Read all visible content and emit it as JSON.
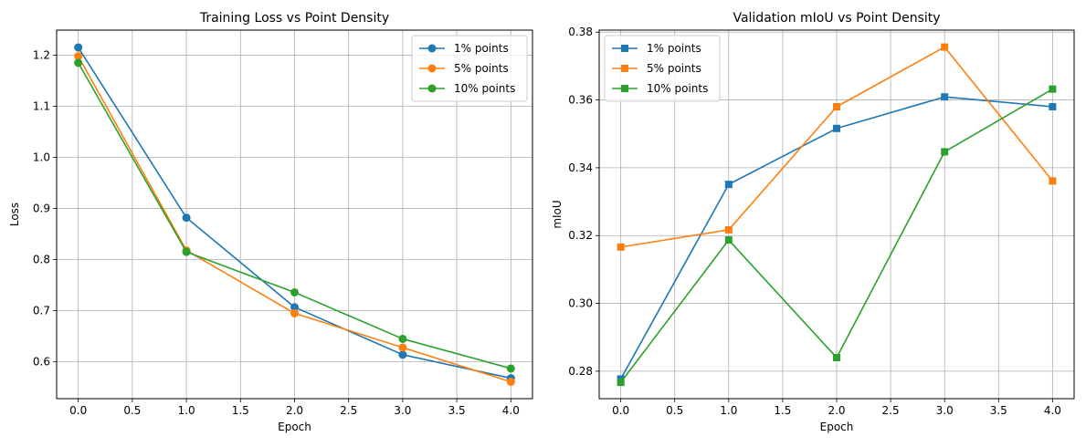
{
  "chart_data": [
    {
      "type": "line",
      "title": "Training Loss vs Point Density",
      "xlabel": "Epoch",
      "ylabel": "Loss",
      "xlim": [
        -0.2,
        4.2
      ],
      "ylim": [
        0.528,
        1.249
      ],
      "xticks": [
        0.0,
        0.5,
        1.0,
        1.5,
        2.0,
        2.5,
        3.0,
        3.5,
        4.0
      ],
      "xtick_labels": [
        "0.0",
        "0.5",
        "1.0",
        "1.5",
        "2.0",
        "2.5",
        "3.0",
        "3.5",
        "4.0"
      ],
      "yticks": [
        0.6,
        0.7,
        0.8,
        0.9,
        1.0,
        1.1,
        1.2
      ],
      "ytick_labels": [
        "0.6",
        "0.7",
        "0.8",
        "0.9",
        "1.0",
        "1.1",
        "1.2"
      ],
      "grid": true,
      "legend_position": "top-right",
      "marker": "circle",
      "x": [
        0,
        1,
        2,
        3,
        4
      ],
      "series": [
        {
          "name": "1% points",
          "color": "#1f77b4",
          "values": [
            1.215,
            0.882,
            0.707,
            0.614,
            0.568
          ]
        },
        {
          "name": "5% points",
          "color": "#ff7f0e",
          "values": [
            1.198,
            0.818,
            0.695,
            0.628,
            0.561
          ]
        },
        {
          "name": "10% points",
          "color": "#2ca02c",
          "values": [
            1.185,
            0.815,
            0.736,
            0.645,
            0.587
          ]
        }
      ]
    },
    {
      "type": "line",
      "title": "Validation mIoU vs Point Density",
      "xlabel": "Epoch",
      "ylabel": "mIoU",
      "xlim": [
        -0.2,
        4.2
      ],
      "ylim": [
        0.2719,
        0.3806
      ],
      "xticks": [
        0.0,
        0.5,
        1.0,
        1.5,
        2.0,
        2.5,
        3.0,
        3.5,
        4.0
      ],
      "xtick_labels": [
        "0.0",
        "0.5",
        "1.0",
        "1.5",
        "2.0",
        "2.5",
        "3.0",
        "3.5",
        "4.0"
      ],
      "yticks": [
        0.28,
        0.3,
        0.32,
        0.34,
        0.36,
        0.38
      ],
      "ytick_labels": [
        "0.28",
        "0.30",
        "0.32",
        "0.34",
        "0.36",
        "0.38"
      ],
      "grid": true,
      "legend_position": "top-left",
      "marker": "square",
      "x": [
        0,
        1,
        2,
        3,
        4
      ],
      "series": [
        {
          "name": "1% points",
          "color": "#1f77b4",
          "values": [
            0.2777,
            0.3351,
            0.3516,
            0.3609,
            0.358
          ]
        },
        {
          "name": "5% points",
          "color": "#ff7f0e",
          "values": [
            0.3166,
            0.3217,
            0.358,
            0.3756,
            0.3361
          ]
        },
        {
          "name": "10% points",
          "color": "#2ca02c",
          "values": [
            0.2767,
            0.3187,
            0.284,
            0.3447,
            0.3632
          ]
        }
      ]
    }
  ]
}
